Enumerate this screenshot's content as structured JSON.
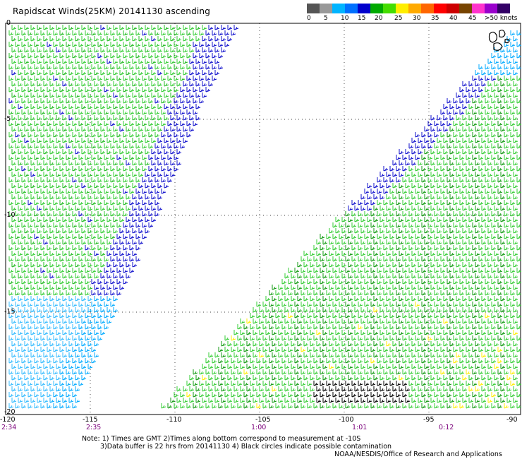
{
  "title": "Rapidscat Winds(25KM) 20141130 ascending",
  "scale": {
    "labels": [
      "0",
      "5",
      "10",
      "15",
      "20",
      "25",
      "30",
      "35",
      "40",
      "45",
      ">50 knots"
    ],
    "colors": [
      "#555555",
      "#999999",
      "#00b4ff",
      "#0070ff",
      "#0000cc",
      "#00aa00",
      "#44dd00",
      "#ffee00",
      "#ffaa00",
      "#ff6600",
      "#ff0000",
      "#cc0000",
      "#774400",
      "#ff33cc",
      "#9900cc",
      "#330066"
    ]
  },
  "axes": {
    "x_labels": [
      "-120",
      "-115",
      "-110",
      "-105",
      "-100",
      "-95",
      "-90"
    ],
    "y_labels": [
      "0",
      "-5",
      "-10",
      "-15",
      "-20"
    ],
    "time_labels": [
      "2:34",
      "2:35",
      "1:00",
      "1:01",
      "0:12"
    ]
  },
  "notes": {
    "line1": "Note: 1) Times are GMT 2)Times along bottom correspond to measurement at -10S",
    "line2": "3)Data buffer is 22 hrs from 20141130 4) Black circles indicate possible contamination",
    "credit": "NOAA/NESDIS/Office of Research and Applications"
  }
}
